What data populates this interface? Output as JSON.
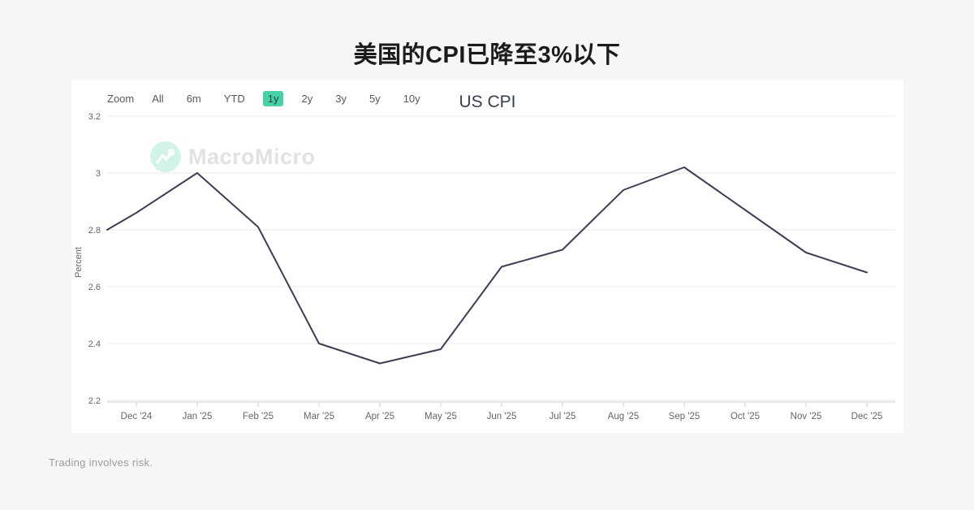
{
  "page": {
    "title": "美国的CPI已降至3%以下",
    "disclaimer": "Trading involves risk.",
    "background_color": "#f6f6f6"
  },
  "toolbar": {
    "zoom_label": "Zoom",
    "buttons": [
      {
        "label": "All",
        "active": false
      },
      {
        "label": "6m",
        "active": false
      },
      {
        "label": "YTD",
        "active": false
      },
      {
        "label": "1y",
        "active": true
      },
      {
        "label": "2y",
        "active": false
      },
      {
        "label": "3y",
        "active": false
      },
      {
        "label": "5y",
        "active": false
      },
      {
        "label": "10y",
        "active": false
      }
    ],
    "active_button_color": "#47d1a5"
  },
  "watermark": {
    "brand": "MacroMicro",
    "logo_icon": "line-chart-logo-icon",
    "logo_bg_color": "#d2f3e8",
    "text_color": "#e2e2e2"
  },
  "chart_data": {
    "type": "line",
    "title": "US CPI",
    "ylabel": "Percent",
    "ylim": [
      2.2,
      3.2
    ],
    "ytick_labels": [
      "3.2",
      "3",
      "2.8",
      "2.6",
      "2.4",
      "2.2"
    ],
    "ytick_values": [
      3.2,
      3.0,
      2.8,
      2.6,
      2.4,
      2.2
    ],
    "categories": [
      "Dec '24",
      "Jan '25",
      "Feb '25",
      "Mar '25",
      "Apr '25",
      "May '25",
      "Jun '25",
      "Jul '25",
      "Aug '25",
      "Sep '25",
      "Oct '25",
      "Nov '25",
      "Dec '25"
    ],
    "values": [
      2.86,
      3.0,
      2.81,
      2.4,
      2.33,
      2.38,
      2.67,
      2.73,
      2.94,
      3.02,
      2.87,
      2.72,
      2.65
    ],
    "lead_in_edge_value": 2.8,
    "line_color": "#3e3e55",
    "grid_color": "#e8e8e8",
    "axis_line_color": "#d0d0d0",
    "tick_label_color": "#666666",
    "grid": true,
    "legend": "none"
  }
}
